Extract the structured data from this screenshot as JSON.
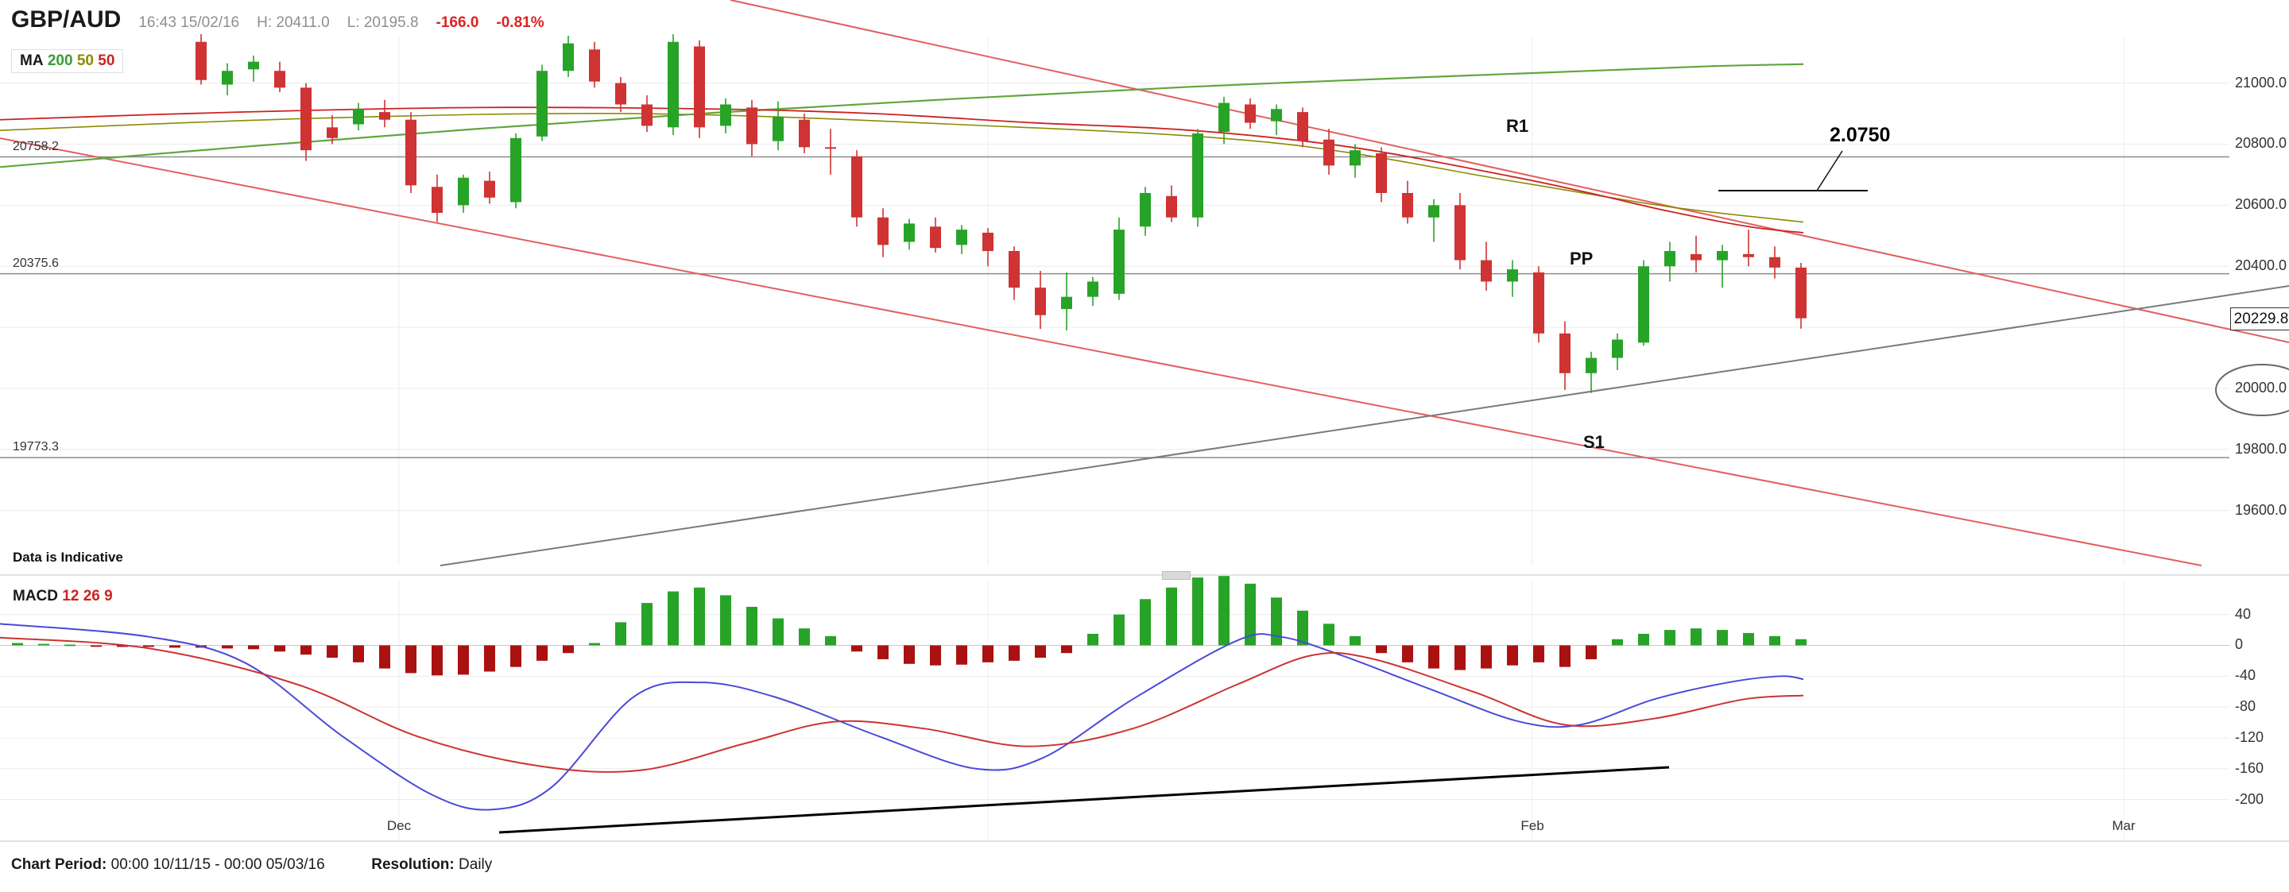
{
  "header": {
    "symbol": "GBP/AUD",
    "timestamp": "16:43 15/02/16",
    "high_label": "H:",
    "high": "20411.0",
    "low_label": "L:",
    "low": "20195.8",
    "change": "-166.0",
    "change_pct": "-0.81%"
  },
  "ma_legend": {
    "label": "MA",
    "p1": "200",
    "p2": "50",
    "p3": "50"
  },
  "macd_legend": {
    "label": "MACD",
    "p1": "12",
    "p2": "26",
    "p3": "9"
  },
  "annotations": {
    "r1": "R1",
    "pp": "PP",
    "s1": "S1",
    "target": "2.0750",
    "indicative": "Data is Indicative"
  },
  "last_price_label": "20229.8",
  "x_axis": {
    "labels": [
      {
        "text": "Dec",
        "x": 502
      },
      {
        "text": "Feb",
        "x": 1928
      },
      {
        "text": "Mar",
        "x": 2672
      }
    ]
  },
  "footer": {
    "period_label": "Chart Period:",
    "period": "00:00 10/11/15 - 00:00 05/03/16",
    "resolution_label": "Resolution:",
    "resolution": "Daily"
  },
  "chart_data": {
    "type": "candlestick",
    "title": "GBP/AUD Daily with MACD(12,26,9)",
    "colors": {
      "up": "#27a327",
      "down": "#cf3333",
      "hist_up": "#27a327",
      "hist_down": "#aa1111",
      "macd_line": "#4a4ad8",
      "signal_line": "#cc3333",
      "ma200": "#62a53e",
      "ma50_olive": "#8b8b00",
      "ma50_red": "#cc2222",
      "grid": "#ececec",
      "pivot": "#8c8c8c"
    },
    "price_pane": {
      "ylim": [
        19420,
        21155
      ],
      "gridlines": [
        19600,
        19800,
        20000,
        20200,
        20400,
        20600,
        20800,
        21000
      ],
      "axis_labels": [
        {
          "text": "21000.0",
          "value": 21000
        },
        {
          "text": "20800.0",
          "value": 20800
        },
        {
          "text": "20600.0",
          "value": 20600
        },
        {
          "text": "20400.0",
          "value": 20400
        },
        {
          "text": "20000.0",
          "value": 20000
        },
        {
          "text": "19800.0",
          "value": 19800
        },
        {
          "text": "19600.0",
          "value": 19600
        }
      ],
      "pivots": [
        {
          "name": "R1",
          "label": "20758.2",
          "value": 20758.2
        },
        {
          "name": "PP",
          "label": "20375.6",
          "value": 20375.6
        },
        {
          "name": "S1",
          "label": "19773.3",
          "value": 19773.3
        }
      ],
      "last_price": 20229.8,
      "circled_level": 20000,
      "candles": [
        [
          21135,
          21160,
          20995,
          21010
        ],
        [
          20995,
          21065,
          20960,
          21040
        ],
        [
          21045,
          21090,
          21005,
          21070
        ],
        [
          21040,
          21070,
          20970,
          20985
        ],
        [
          20985,
          21000,
          20745,
          20780
        ],
        [
          20855,
          20895,
          20800,
          20820
        ],
        [
          20865,
          20935,
          20845,
          20915
        ],
        [
          20905,
          20945,
          20855,
          20880
        ],
        [
          20880,
          20905,
          20640,
          20665
        ],
        [
          20660,
          20700,
          20545,
          20575
        ],
        [
          20600,
          20700,
          20575,
          20690
        ],
        [
          20680,
          20710,
          20605,
          20625
        ],
        [
          20610,
          20835,
          20590,
          20820
        ],
        [
          20825,
          21060,
          20810,
          21040
        ],
        [
          21040,
          21155,
          21020,
          21130
        ],
        [
          21110,
          21135,
          20985,
          21005
        ],
        [
          21000,
          21020,
          20905,
          20930
        ],
        [
          20930,
          20960,
          20840,
          20860
        ],
        [
          20855,
          21160,
          20830,
          21135
        ],
        [
          21120,
          21140,
          20820,
          20855
        ],
        [
          20860,
          20950,
          20835,
          20930
        ],
        [
          20920,
          20945,
          20760,
          20800
        ],
        [
          20810,
          20940,
          20780,
          20890
        ],
        [
          20880,
          20900,
          20770,
          20790
        ],
        [
          20790,
          20850,
          20700,
          20785
        ],
        [
          20760,
          20780,
          20530,
          20560
        ],
        [
          20560,
          20590,
          20430,
          20470
        ],
        [
          20480,
          20555,
          20455,
          20540
        ],
        [
          20530,
          20560,
          20445,
          20460
        ],
        [
          20470,
          20535,
          20440,
          20520
        ],
        [
          20510,
          20525,
          20400,
          20450
        ],
        [
          20450,
          20465,
          20290,
          20330
        ],
        [
          20330,
          20385,
          20195,
          20240
        ],
        [
          20260,
          20380,
          20190,
          20300
        ],
        [
          20300,
          20365,
          20270,
          20350
        ],
        [
          20310,
          20560,
          20290,
          20520
        ],
        [
          20530,
          20660,
          20500,
          20640
        ],
        [
          20630,
          20665,
          20545,
          20560
        ],
        [
          20560,
          20850,
          20530,
          20835
        ],
        [
          20840,
          20955,
          20800,
          20935
        ],
        [
          20930,
          20950,
          20850,
          20870
        ],
        [
          20875,
          20930,
          20830,
          20915
        ],
        [
          20905,
          20920,
          20790,
          20810
        ],
        [
          20815,
          20850,
          20700,
          20730
        ],
        [
          20730,
          20800,
          20690,
          20780
        ],
        [
          20770,
          20790,
          20610,
          20640
        ],
        [
          20640,
          20680,
          20540,
          20560
        ],
        [
          20560,
          20620,
          20480,
          20600
        ],
        [
          20600,
          20640,
          20390,
          20420
        ],
        [
          20420,
          20480,
          20320,
          20350
        ],
        [
          20350,
          20420,
          20300,
          20390
        ],
        [
          20380,
          20400,
          20150,
          20180
        ],
        [
          20180,
          20220,
          19995,
          20050
        ],
        [
          20050,
          20120,
          19985,
          20100
        ],
        [
          20100,
          20180,
          20060,
          20160
        ],
        [
          20150,
          20420,
          20140,
          20400
        ],
        [
          20400,
          20480,
          20350,
          20450
        ],
        [
          20440,
          20500,
          20380,
          20420
        ],
        [
          20420,
          20470,
          20330,
          20450
        ],
        [
          20440,
          20520,
          20400,
          20430
        ],
        [
          20430,
          20465,
          20360,
          20395.8
        ],
        [
          20395.8,
          20411,
          20195.8,
          20229.8
        ]
      ],
      "ma200": {
        "x": [
          0,
          300,
          600,
          900,
          1200,
          1500,
          1800,
          2000,
          2150,
          2269
        ],
        "price": [
          20725,
          20790,
          20850,
          20903,
          20948,
          20988,
          21020,
          21040,
          21055,
          21062
        ]
      },
      "ma50_red": {
        "x": [
          0,
          300,
          600,
          900,
          1100,
          1300,
          1500,
          1700,
          1900,
          2000,
          2100,
          2200,
          2269
        ],
        "price": [
          20880,
          20905,
          20920,
          20915,
          20900,
          20870,
          20845,
          20790,
          20695,
          20640,
          20580,
          20530,
          20510
        ]
      },
      "ma50_olive": {
        "x": [
          0,
          400,
          800,
          1200,
          1600,
          1900,
          2100,
          2269
        ],
        "price": [
          20845,
          20885,
          20900,
          20865,
          20805,
          20680,
          20595,
          20545
        ]
      },
      "trendlines": [
        {
          "x1": 919,
          "y1": 0,
          "x2": 2880,
          "y2": 431,
          "color": "#e06060",
          "width": 2
        },
        {
          "x1": 0,
          "y1": 174,
          "x2": 2770,
          "y2": 712,
          "color": "#e06060",
          "width": 2
        },
        {
          "x1": 554,
          "y1": 712,
          "x2": 2880,
          "y2": 360,
          "color": "#7a7a7a",
          "width": 2
        },
        {
          "x1": 2162,
          "y1": 240,
          "x2": 2350,
          "y2": 240,
          "color": "#111111",
          "width": 2
        },
        {
          "x1": 2318,
          "y1": 190,
          "x2": 2286,
          "y2": 240,
          "color": "#111111",
          "width": 1.5
        }
      ],
      "ellipse": {
        "cx": 2846,
        "cy": 491,
        "rx": 58,
        "ry": 32
      }
    },
    "macd_pane": {
      "params": [
        12,
        26,
        9
      ],
      "ylim": [
        -254,
        85
      ],
      "axis_labels": [
        40,
        0,
        -40,
        -80,
        -120,
        -160,
        -200
      ],
      "histogram": [
        4,
        3,
        2,
        1,
        -1,
        -2,
        -2,
        -3,
        -3,
        -4,
        -5,
        -8,
        -12,
        -16,
        -22,
        -30,
        -36,
        -39,
        -38,
        -34,
        -28,
        -20,
        -10,
        3,
        30,
        55,
        70,
        75,
        65,
        50,
        35,
        22,
        12,
        -8,
        -18,
        -24,
        -26,
        -25,
        -22,
        -20,
        -16,
        -10,
        15,
        40,
        60,
        75,
        88,
        90,
        80,
        62,
        45,
        28,
        12,
        -10,
        -22,
        -30,
        -32,
        -30,
        -26,
        -22,
        -28,
        -18,
        8,
        15,
        20,
        22,
        20,
        16,
        12,
        8
      ],
      "macd_line": {
        "x": [
          0,
          188,
          309,
          431,
          544,
          619,
          694,
          797,
          881,
          975,
          1106,
          1228,
          1312,
          1425,
          1556,
          1612,
          1688,
          1800,
          1912,
          1988,
          2081,
          2175,
          2241,
          2269
        ],
        "v": [
          28,
          11,
          -23,
          -118,
          -194,
          -213,
          -184,
          -67,
          -48,
          -67,
          -118,
          -160,
          -146,
          -70,
          6,
          11,
          -13,
          -57,
          -99,
          -103,
          -70,
          -48,
          -40,
          -44
        ]
      },
      "signal_line": {
        "x": [
          0,
          188,
          375,
          525,
          675,
          806,
          938,
          1050,
          1163,
          1294,
          1425,
          1556,
          1650,
          1725,
          1856,
          1969,
          2081,
          2194,
          2269
        ],
        "v": [
          10,
          -4,
          -51,
          -118,
          -156,
          -162,
          -127,
          -99,
          -108,
          -131,
          -108,
          -51,
          -13,
          -17,
          -61,
          -103,
          -95,
          -70,
          -65
        ]
      },
      "trendline": {
        "x1": 628,
        "y1": 1048,
        "x2": 2100,
        "y2": 966,
        "color": "#000000",
        "width": 3
      }
    },
    "layout": {
      "plot_right": 2805,
      "axis_label_x": 2812,
      "price_pane": {
        "top": 45,
        "bottom": 712
      },
      "macd_pane": {
        "top": 730,
        "bottom": 1059
      },
      "x_start": 253,
      "x_step": 33,
      "hist_x_start": -11,
      "candle_width": 14,
      "v_gridlines_x": [
        502,
        1243,
        1928,
        2672
      ],
      "separators_y": [
        724,
        1059
      ]
    }
  }
}
